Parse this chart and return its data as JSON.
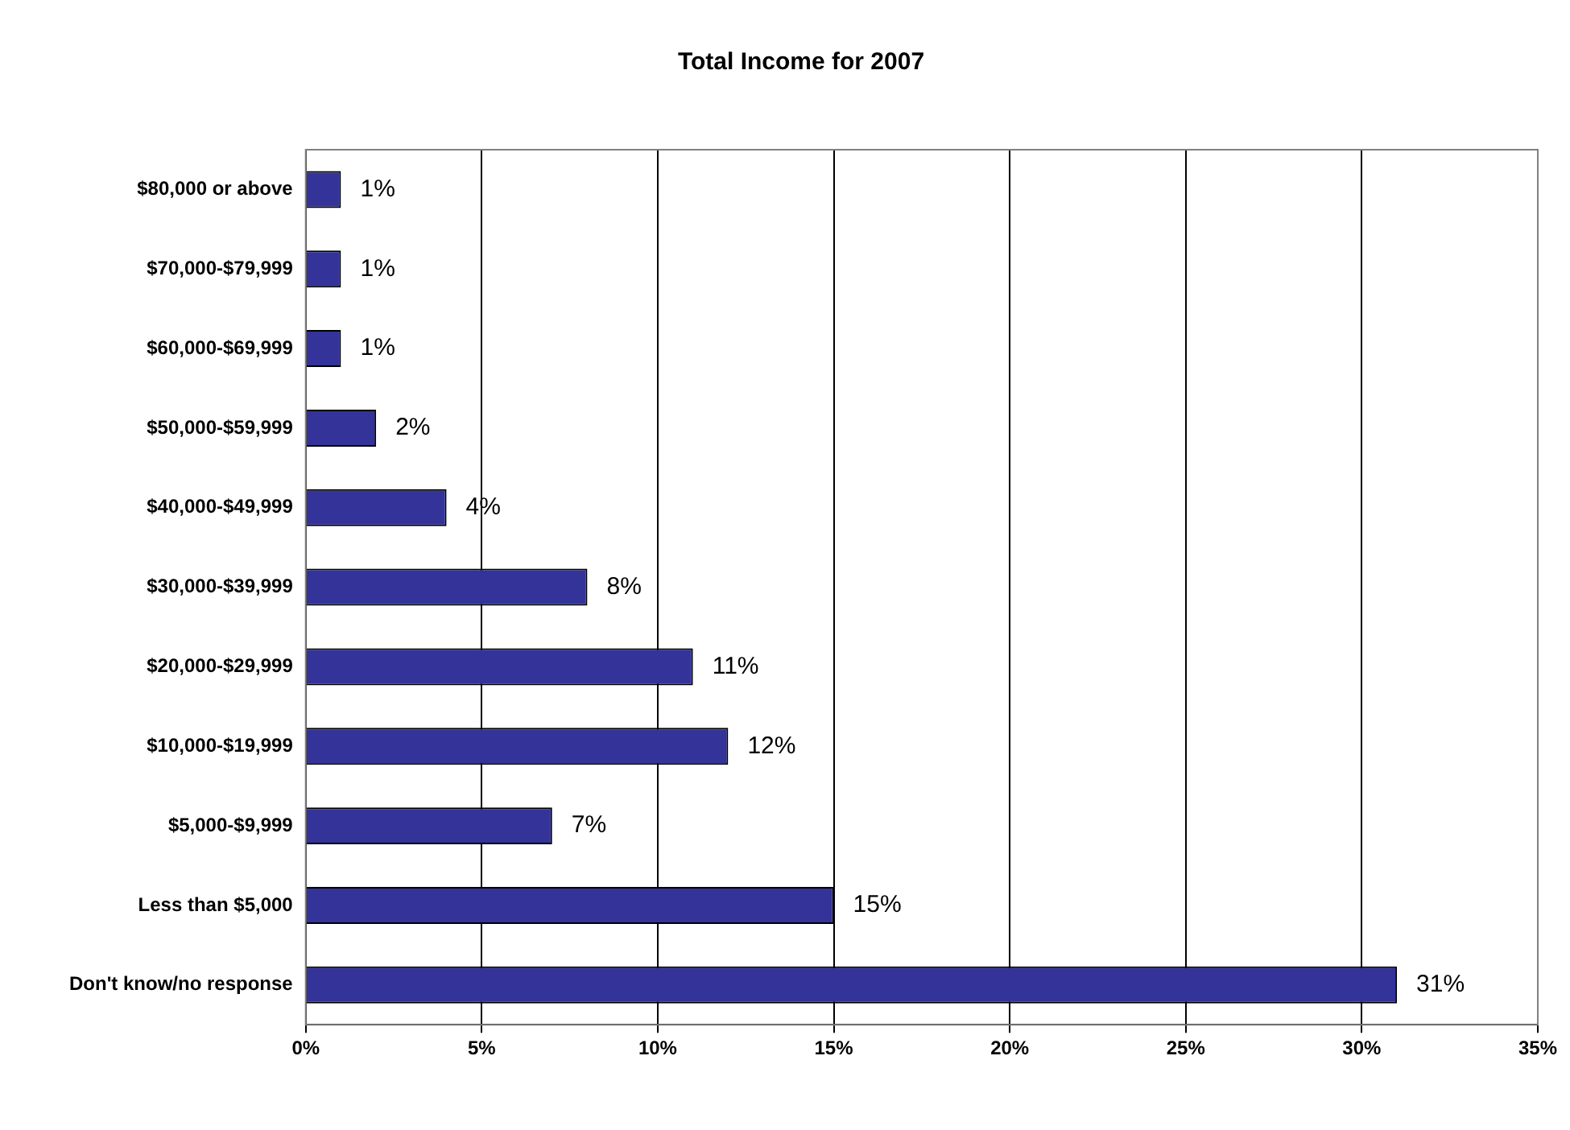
{
  "chart_data": {
    "type": "bar",
    "orientation": "horizontal",
    "title": "Total Income for 2007",
    "categories": [
      "$80,000 or above",
      "$70,000-$79,999",
      "$60,000-$69,999",
      "$50,000-$59,999",
      "$40,000-$49,999",
      "$30,000-$39,999",
      "$20,000-$29,999",
      "$10,000-$19,999",
      "$5,000-$9,999",
      "Less than $5,000",
      "Don't know/no response"
    ],
    "values": [
      1,
      1,
      1,
      2,
      4,
      8,
      11,
      12,
      7,
      15,
      31
    ],
    "value_labels": [
      "1%",
      "1%",
      "1%",
      "2%",
      "4%",
      "8%",
      "11%",
      "12%",
      "7%",
      "15%",
      "31%"
    ],
    "color": "#333399",
    "xlim": [
      0,
      35
    ],
    "xticks": [
      {
        "value": 0,
        "label": "0%"
      },
      {
        "value": 5,
        "label": "5%"
      },
      {
        "value": 10,
        "label": "10%"
      },
      {
        "value": 15,
        "label": "15%"
      },
      {
        "value": 20,
        "label": "20%"
      },
      {
        "value": 25,
        "label": "25%"
      },
      {
        "value": 30,
        "label": "30%"
      },
      {
        "value": 35,
        "label": "35%"
      }
    ],
    "grid": "x",
    "legend": false
  }
}
